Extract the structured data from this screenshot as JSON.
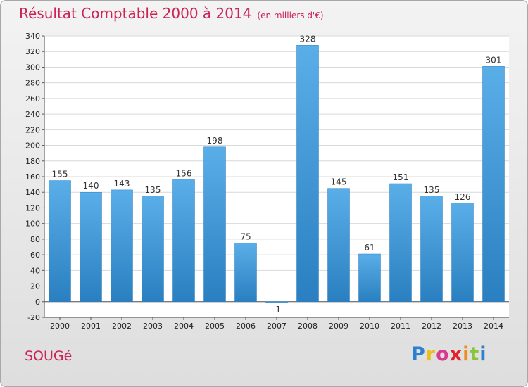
{
  "header": {
    "title": "Résultat Comptable 2000 à 2014",
    "subtitle": "(en milliers d'€)"
  },
  "footer": {
    "commune": "SOUGé",
    "brand": "Proxiti"
  },
  "colors": {
    "title": "#cc2255",
    "bar_top": "#5aaee8",
    "bar_bottom": "#2a7fc0",
    "brand_letters": [
      "#2e7fd1",
      "#e8c21a",
      "#d83a8f",
      "#e3222c",
      "#f28b1f",
      "#8ac43f",
      "#2e7fd1"
    ]
  },
  "chart_data": {
    "type": "bar",
    "title": "Résultat Comptable 2000 à 2014",
    "xlabel": "",
    "ylabel": "",
    "ylim": [
      -20,
      340
    ],
    "ytick_step": 20,
    "grid": true,
    "categories": [
      "2000",
      "2001",
      "2002",
      "2003",
      "2004",
      "2005",
      "2006",
      "2007",
      "2008",
      "2009",
      "2010",
      "2011",
      "2012",
      "2013",
      "2014"
    ],
    "values": [
      155,
      140,
      143,
      135,
      156,
      198,
      75,
      -1,
      328,
      145,
      61,
      151,
      135,
      126,
      301
    ]
  }
}
